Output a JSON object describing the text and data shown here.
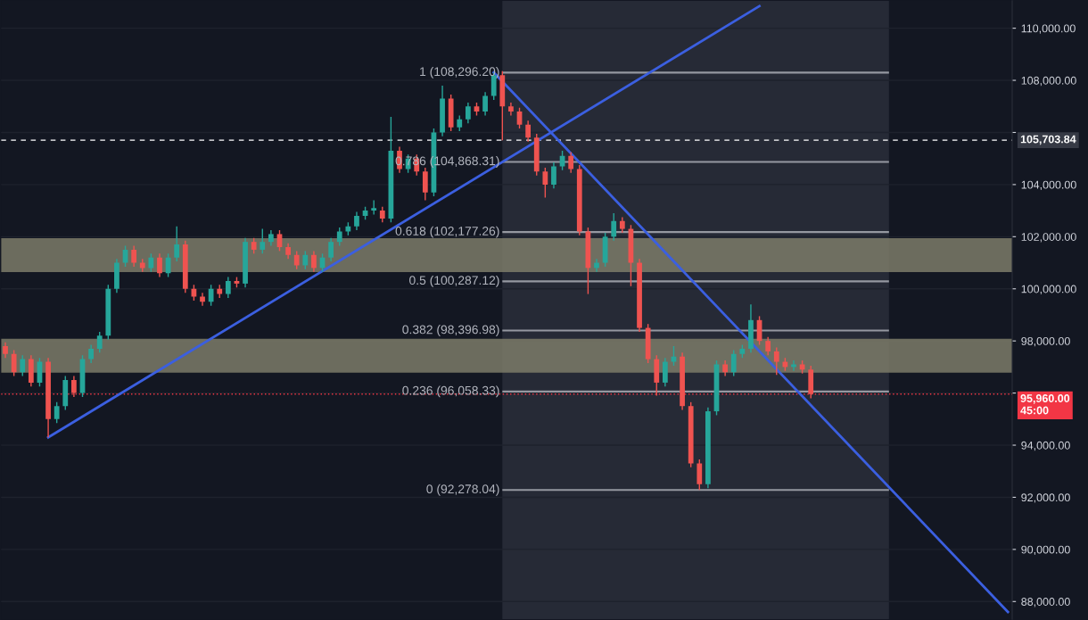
{
  "chart_data": {
    "type": "candlestick",
    "categories": [
      null,
      null,
      null,
      null,
      null,
      null,
      null,
      null,
      null,
      null,
      null,
      null,
      null,
      null,
      null,
      null,
      null,
      null,
      null,
      null,
      null,
      null,
      null,
      null,
      null,
      null,
      null,
      null,
      null,
      null,
      null,
      null,
      null,
      null,
      null,
      null,
      null,
      null,
      null,
      null,
      null,
      null,
      null,
      null,
      null,
      null,
      null,
      null,
      null,
      null,
      null,
      null,
      null,
      null,
      null,
      null,
      null,
      null,
      null,
      null,
      null,
      null,
      null,
      null,
      null,
      null,
      null,
      null,
      null,
      null,
      null,
      null,
      null,
      null,
      null,
      null,
      null,
      null,
      null,
      null,
      null,
      null,
      null,
      null,
      null,
      null,
      null,
      null,
      null,
      null,
      null,
      null,
      null,
      null,
      null,
      null,
      null,
      null,
      null,
      null,
      null,
      null,
      null,
      null,
      null,
      null,
      null,
      null,
      null,
      null,
      null,
      null,
      null,
      null,
      null,
      null,
      null,
      null
    ],
    "ohlc": [
      [
        97800,
        97950,
        97350,
        97500
      ],
      [
        97500,
        97650,
        96650,
        96800
      ],
      [
        96800,
        97450,
        96650,
        97300
      ],
      [
        97300,
        97450,
        96250,
        96400
      ],
      [
        96400,
        97350,
        96250,
        97200
      ],
      [
        97200,
        97350,
        94300,
        95000
      ],
      [
        95000,
        95650,
        94850,
        95500
      ],
      [
        95500,
        96650,
        95350,
        96500
      ],
      [
        96500,
        96650,
        95850,
        96000
      ],
      [
        96000,
        97450,
        95850,
        97300
      ],
      [
        97300,
        97850,
        97150,
        97700
      ],
      [
        97700,
        98350,
        97550,
        98200
      ],
      [
        98200,
        100150,
        98050,
        100000
      ],
      [
        100000,
        101150,
        99850,
        101000
      ],
      [
        101000,
        101650,
        100850,
        101500
      ],
      [
        101500,
        101650,
        100850,
        101000
      ],
      [
        101000,
        101150,
        100650,
        100800
      ],
      [
        100800,
        101350,
        100650,
        101200
      ],
      [
        101200,
        101350,
        100450,
        100600
      ],
      [
        100600,
        101350,
        100450,
        101200
      ],
      [
        101200,
        102400,
        101050,
        101700
      ],
      [
        101700,
        101850,
        99850,
        100000
      ],
      [
        100000,
        100150,
        99550,
        99700
      ],
      [
        99700,
        99850,
        99350,
        99500
      ],
      [
        99500,
        100150,
        99350,
        100000
      ],
      [
        100000,
        100150,
        99650,
        99800
      ],
      [
        99800,
        100450,
        99650,
        100300
      ],
      [
        100300,
        100450,
        100050,
        100200
      ],
      [
        100200,
        101950,
        100050,
        101800
      ],
      [
        101800,
        101950,
        101350,
        101500
      ],
      [
        101500,
        102300,
        101350,
        101800
      ],
      [
        101800,
        102250,
        101650,
        102100
      ],
      [
        102100,
        102250,
        101450,
        101600
      ],
      [
        101600,
        101750,
        101150,
        101300
      ],
      [
        101300,
        101450,
        100750,
        100900
      ],
      [
        100900,
        101450,
        100750,
        101300
      ],
      [
        101300,
        101450,
        100650,
        100800
      ],
      [
        100800,
        101350,
        100650,
        101200
      ],
      [
        101200,
        101950,
        101050,
        101800
      ],
      [
        101800,
        102350,
        101650,
        102200
      ],
      [
        102200,
        102550,
        102050,
        102400
      ],
      [
        102400,
        102950,
        102250,
        102800
      ],
      [
        102800,
        103150,
        102650,
        103000
      ],
      [
        103000,
        103400,
        102850,
        103100
      ],
      [
        103000,
        103150,
        102550,
        102700
      ],
      [
        102700,
        106600,
        102550,
        105300
      ],
      [
        105300,
        105450,
        104450,
        104600
      ],
      [
        104600,
        105150,
        104450,
        105000
      ],
      [
        105000,
        105150,
        104350,
        104500
      ],
      [
        104500,
        104650,
        103400,
        103700
      ],
      [
        103700,
        106150,
        103550,
        106000
      ],
      [
        106000,
        107800,
        105850,
        107300
      ],
      [
        107300,
        107450,
        106050,
        106200
      ],
      [
        106200,
        106650,
        106050,
        106500
      ],
      [
        106500,
        107150,
        106350,
        107000
      ],
      [
        107000,
        107150,
        106650,
        106800
      ],
      [
        106800,
        107550,
        106650,
        107400
      ],
      [
        107400,
        108296,
        107250,
        108200
      ],
      [
        108200,
        108350,
        105700,
        107000
      ],
      [
        107000,
        107150,
        106650,
        106800
      ],
      [
        106800,
        106950,
        106150,
        106300
      ],
      [
        106300,
        106450,
        105650,
        105800
      ],
      [
        105800,
        105950,
        104350,
        104500
      ],
      [
        104500,
        104650,
        103500,
        104000
      ],
      [
        104000,
        104850,
        103850,
        104700
      ],
      [
        104700,
        105300,
        104550,
        105100
      ],
      [
        105100,
        105250,
        104450,
        104600
      ],
      [
        104600,
        104750,
        102050,
        102200
      ],
      [
        102200,
        102350,
        99800,
        100800
      ],
      [
        100800,
        101150,
        100650,
        101000
      ],
      [
        101000,
        102150,
        100850,
        102000
      ],
      [
        102000,
        102900,
        101850,
        102600
      ],
      [
        102600,
        102750,
        102150,
        102300
      ],
      [
        102300,
        102450,
        100100,
        101000
      ],
      [
        101000,
        101150,
        98350,
        98500
      ],
      [
        98500,
        98650,
        97150,
        97300
      ],
      [
        97300,
        97450,
        95900,
        96400
      ],
      [
        96400,
        97350,
        96250,
        97200
      ],
      [
        97200,
        97800,
        97050,
        97400
      ],
      [
        97400,
        97550,
        95350,
        95500
      ],
      [
        95500,
        95650,
        93150,
        93300
      ],
      [
        93300,
        93450,
        92278,
        92500
      ],
      [
        92500,
        95450,
        92350,
        95300
      ],
      [
        95300,
        97250,
        95150,
        97100
      ],
      [
        97100,
        97250,
        96650,
        96800
      ],
      [
        96800,
        97650,
        96650,
        97500
      ],
      [
        97500,
        97850,
        97350,
        97700
      ],
      [
        97700,
        99400,
        97550,
        98800
      ],
      [
        98800,
        98950,
        97850,
        98000
      ],
      [
        98000,
        98150,
        97450,
        97600
      ],
      [
        97600,
        97750,
        96700,
        97200
      ],
      [
        97200,
        97350,
        96850,
        97000
      ],
      [
        97000,
        97250,
        96850,
        97100
      ],
      [
        97100,
        97250,
        96750,
        96900
      ],
      [
        96900,
        97050,
        95800,
        95960
      ],
      null,
      null,
      null,
      null,
      null,
      null,
      null,
      null,
      null,
      null,
      null,
      null,
      null,
      null,
      null,
      null,
      null,
      null,
      null,
      null,
      null,
      null,
      null
    ],
    "colors": [
      "#ef5350",
      "#ef5350",
      "#26a69a",
      "#ef5350",
      "#26a69a",
      "#ef5350",
      "#26a69a",
      "#26a69a",
      "#ef5350",
      "#26a69a",
      "#26a69a",
      "#26a69a",
      "#26a69a",
      "#26a69a",
      "#26a69a",
      "#ef5350",
      "#ef5350",
      "#26a69a",
      "#ef5350",
      "#26a69a",
      "#26a69a",
      "#ef5350",
      "#ef5350",
      "#ef5350",
      "#26a69a",
      "#ef5350",
      "#26a69a",
      "#ef5350",
      "#26a69a",
      "#ef5350",
      "#26a69a",
      "#26a69a",
      "#ef5350",
      "#ef5350",
      "#ef5350",
      "#26a69a",
      "#ef5350",
      "#26a69a",
      "#26a69a",
      "#26a69a",
      "#26a69a",
      "#26a69a",
      "#26a69a",
      "#26a69a",
      "#ef5350",
      "#26a69a",
      "#ef5350",
      "#26a69a",
      "#ef5350",
      "#ef5350",
      "#26a69a",
      "#26a69a",
      "#ef5350",
      "#26a69a",
      "#26a69a",
      "#ef5350",
      "#26a69a",
      "#26a69a",
      "#ef5350",
      "#ef5350",
      "#ef5350",
      "#ef5350",
      "#ef5350",
      "#ef5350",
      "#26a69a",
      "#26a69a",
      "#ef5350",
      "#ef5350",
      "#ef5350",
      "#26a69a",
      "#26a69a",
      "#26a69a",
      "#ef5350",
      "#ef5350",
      "#ef5350",
      "#ef5350",
      "#ef5350",
      "#26a69a",
      "#26a69a",
      "#ef5350",
      "#ef5350",
      "#ef5350",
      "#26a69a",
      "#26a69a",
      "#ef5350",
      "#26a69a",
      "#26a69a",
      "#26a69a",
      "#ef5350",
      "#ef5350",
      "#ef5350",
      "#ef5350",
      "#26a69a",
      "#ef5350",
      "#ef5350",
      null,
      null,
      null,
      null,
      null,
      null,
      null,
      null,
      null,
      null,
      null,
      null,
      null,
      null,
      null,
      null,
      null,
      null,
      null,
      null,
      null,
      null,
      null
    ],
    "series": [
      {
        "type": "line",
        "color": "#3b5fe0",
        "values": [
          null,
          null,
          null,
          null,
          null,
          94300,
          null,
          null,
          null,
          null,
          null,
          null,
          null,
          null,
          null,
          null,
          null,
          null,
          null,
          null,
          null,
          null,
          null,
          null,
          null,
          null,
          null,
          null,
          null,
          null,
          null,
          null,
          null,
          null,
          null,
          null,
          null,
          null,
          null,
          null,
          null,
          null,
          null,
          null,
          null,
          null,
          null,
          null,
          null,
          null,
          null,
          null,
          null,
          null,
          null,
          null,
          null,
          null,
          null,
          null,
          null,
          null,
          null,
          null,
          null,
          null,
          null,
          null,
          null,
          null,
          null,
          null,
          null,
          null,
          null,
          null,
          null,
          null,
          null,
          null,
          null,
          null,
          null,
          null,
          null,
          null,
          null,
          null,
          110850,
          null,
          null,
          null,
          null,
          null,
          null,
          null,
          null,
          null,
          null,
          null,
          null,
          null,
          null,
          null,
          null,
          null,
          null,
          null,
          null,
          null,
          null,
          null,
          null,
          null,
          null,
          null,
          null,
          null
        ]
      },
      {
        "type": "line",
        "color": "#3b5fe0",
        "values": [
          null,
          null,
          null,
          null,
          null,
          null,
          null,
          null,
          null,
          null,
          null,
          null,
          null,
          null,
          null,
          null,
          null,
          null,
          null,
          null,
          null,
          null,
          null,
          null,
          null,
          null,
          null,
          null,
          null,
          null,
          null,
          null,
          null,
          null,
          null,
          null,
          null,
          null,
          null,
          null,
          null,
          null,
          null,
          null,
          null,
          null,
          null,
          null,
          null,
          null,
          null,
          null,
          null,
          null,
          null,
          null,
          null,
          108300,
          null,
          null,
          null,
          null,
          null,
          null,
          null,
          null,
          null,
          null,
          null,
          null,
          null,
          null,
          null,
          null,
          null,
          null,
          null,
          null,
          null,
          null,
          null,
          null,
          null,
          null,
          null,
          null,
          null,
          null,
          null,
          null,
          null,
          null,
          null,
          null,
          null,
          null,
          null,
          null,
          null,
          null,
          null,
          null,
          null,
          null,
          null,
          null,
          null,
          null,
          null,
          null,
          null,
          null,
          null,
          null,
          null,
          null,
          null,
          87600
        ]
      }
    ],
    "ylim": [
      87315,
      111059
    ],
    "yticks": [
      {
        "value": 88000,
        "label": "88,000.00"
      },
      {
        "value": 90000,
        "label": "90,000.00"
      },
      {
        "value": 92000,
        "label": "92,000.00"
      },
      {
        "value": 94000,
        "label": "94,000.00"
      },
      {
        "value": 96000,
        "label": null
      },
      {
        "value": 98000,
        "label": "98,000.00"
      },
      {
        "value": 100000,
        "label": "100,000.00"
      },
      {
        "value": 102000,
        "label": "102,000.00"
      },
      {
        "value": 104000,
        "label": "104,000.00"
      },
      {
        "value": 106000,
        "label": null
      },
      {
        "value": 108000,
        "label": "108,000.00"
      },
      {
        "value": 110000,
        "label": "110,000.00"
      }
    ],
    "tick_labels": "y",
    "bands": [
      {
        "axis": "y",
        "from": 100640,
        "to": 101940,
        "color": "#7d7b68"
      },
      {
        "axis": "y",
        "from": 96780,
        "to": 98080,
        "color": "#7d7b68"
      }
    ],
    "ref_lines": [
      {
        "axis": "y",
        "value": 108296.2,
        "label": "1 (108,296.20)",
        "color": "#9598a1",
        "line_style": "solid"
      },
      {
        "axis": "y",
        "value": 104868.31,
        "label": "0.786 (104,868.31)",
        "color": "#9598a1",
        "line_style": "solid"
      },
      {
        "axis": "y",
        "value": 102177.26,
        "label": "0.618 (102,177.26)",
        "color": "#9598a1",
        "line_style": "solid"
      },
      {
        "axis": "y",
        "value": 100287.12,
        "label": "0.5 (100,287.12)",
        "color": "#9598a1",
        "line_style": "solid"
      },
      {
        "axis": "y",
        "value": 98396.98,
        "label": "0.382 (98,396.98)",
        "color": "#9598a1",
        "line_style": "solid"
      },
      {
        "axis": "y",
        "value": 96058.33,
        "label": "0.236 (96,058.33)",
        "color": "#9598a1",
        "line_style": "solid"
      },
      {
        "axis": "y",
        "value": 92278.04,
        "label": "0 (92,278.04)",
        "color": "#9598a1",
        "line_style": "solid"
      },
      {
        "axis": "y",
        "value": 105703.84,
        "label": "105,703.84",
        "color": "#ffffff",
        "line_style": "dashed"
      },
      {
        "axis": "y",
        "value": 95960,
        "label": "95,960.00\n45:00",
        "color": "#f23645",
        "line_style": "dotted"
      }
    ],
    "grid": true,
    "legend": false
  }
}
